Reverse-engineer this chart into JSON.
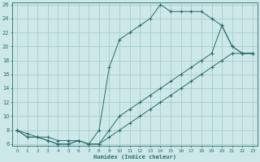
{
  "xlabel": "Humidex (Indice chaleur)",
  "background_color": "#cce8e8",
  "grid_color": "#aacccc",
  "line_color": "#2a6b6b",
  "xlim": [
    0,
    23
  ],
  "ylim": [
    6,
    26
  ],
  "xtick_vals": [
    0,
    1,
    2,
    3,
    4,
    5,
    6,
    7,
    8,
    9,
    10,
    11,
    12,
    13,
    14,
    15,
    16,
    17,
    18,
    19,
    20,
    21,
    22,
    23
  ],
  "ytick_vals": [
    6,
    8,
    10,
    12,
    14,
    16,
    18,
    20,
    22,
    24,
    26
  ],
  "line1_x": [
    0,
    1,
    2,
    3,
    4,
    5,
    6,
    7,
    8,
    9,
    10,
    11,
    12,
    13,
    14,
    15,
    16,
    17,
    18,
    19,
    20,
    21,
    22,
    23
  ],
  "line1_y": [
    8,
    7,
    7,
    6.5,
    6,
    6,
    6.5,
    6,
    6,
    7,
    8,
    9,
    10,
    11,
    12,
    13,
    14,
    15,
    16,
    17,
    18,
    19,
    19,
    19
  ],
  "line2_x": [
    0,
    1,
    2,
    3,
    4,
    5,
    6,
    7,
    8,
    9,
    10,
    11,
    12,
    13,
    14,
    15,
    16,
    17,
    18,
    19,
    20,
    21,
    22,
    23
  ],
  "line2_y": [
    8,
    7,
    7,
    6.5,
    6,
    6,
    6.5,
    6,
    8,
    17,
    21,
    22,
    23,
    24,
    26,
    25,
    25,
    25,
    25,
    24,
    23,
    20,
    19,
    19
  ],
  "line3_x": [
    0,
    1,
    2,
    3,
    4,
    5,
    6,
    7,
    8,
    9,
    10,
    11,
    12,
    13,
    14,
    15,
    16,
    17,
    18,
    19,
    20,
    21,
    22,
    23
  ],
  "line3_y": [
    8,
    7.5,
    7,
    7,
    6.5,
    6.5,
    6.5,
    6,
    6,
    8,
    10,
    11,
    12,
    13,
    14,
    15,
    16,
    17,
    18,
    19,
    23,
    20,
    19,
    19
  ]
}
